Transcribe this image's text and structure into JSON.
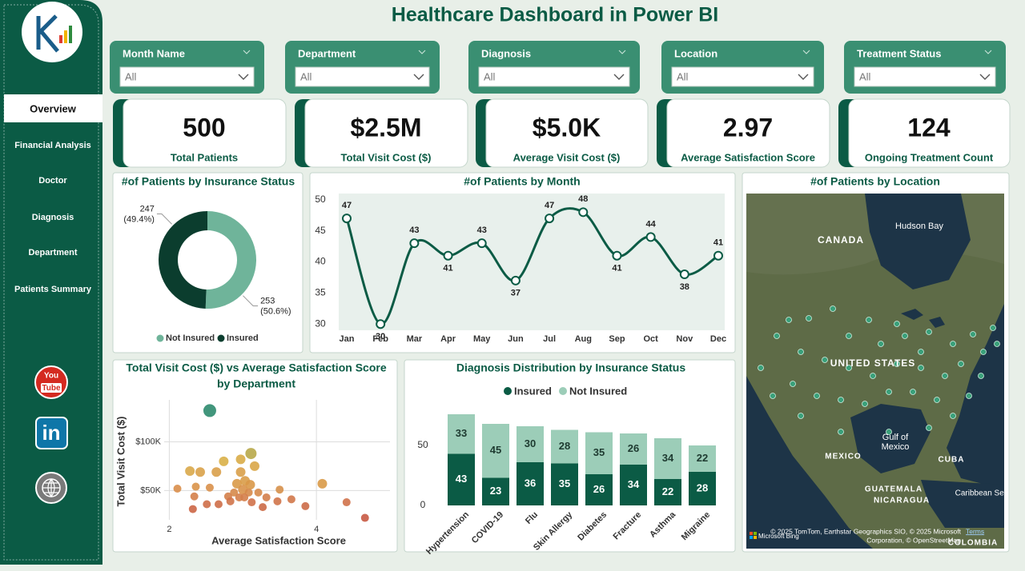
{
  "title": "Healthcare Dashboard in Power BI",
  "nav": {
    "items": [
      "Overview",
      "Financial Analysis",
      "Doctor",
      "Diagnosis",
      "Department",
      "Patients Summary"
    ],
    "active": 0
  },
  "social": {
    "youtube": [
      "You",
      "Tube"
    ],
    "linkedin": "in"
  },
  "filters": [
    {
      "label": "Month Name",
      "value": "All"
    },
    {
      "label": "Department",
      "value": "All"
    },
    {
      "label": "Diagnosis",
      "value": "All"
    },
    {
      "label": "Location",
      "value": "All"
    },
    {
      "label": "Treatment Status",
      "value": "All"
    }
  ],
  "kpis": [
    {
      "value": "500",
      "label": "Total Patients"
    },
    {
      "value": "$2.5M",
      "label": "Total Visit Cost ($)"
    },
    {
      "value": "$5.0K",
      "label": "Average Visit Cost ($)"
    },
    {
      "value": "2.97",
      "label": "Average Satisfaction Score"
    },
    {
      "value": "124",
      "label": "Ongoing Treatment Count"
    }
  ],
  "insurance_chart": {
    "type": "donut",
    "title": "#of Patients by Insurance Status",
    "categories": [
      "Not Insured",
      "Insured"
    ],
    "values": [
      253,
      247
    ],
    "value_labels": [
      "253 (50.6%)",
      "247 (49.4%)"
    ],
    "colors": [
      "#6fb49a",
      "#0b3d2e"
    ]
  },
  "month_chart": {
    "type": "line",
    "title": "#of Patients by Month",
    "categories": [
      "Jan",
      "Feb",
      "Mar",
      "Apr",
      "May",
      "Jun",
      "Jul",
      "Aug",
      "Sep",
      "Oct",
      "Nov",
      "Dec"
    ],
    "values": [
      47,
      30,
      43,
      41,
      43,
      37,
      47,
      48,
      41,
      44,
      38,
      41
    ],
    "color": "#0b5b45",
    "ylim": [
      29,
      51
    ],
    "yticks": [
      30,
      35,
      40,
      45,
      50
    ]
  },
  "cost_chart": {
    "type": "scatter",
    "title": [
      "Total Visit Cost ($) vs Average Satisfaction Score",
      "by Department"
    ],
    "x_label": "Average Satisfaction Score",
    "y_label": "Total Visit Cost ($)",
    "xlim": [
      1.93,
      5.0
    ],
    "ylim": [
      20000,
      143000
    ],
    "xticks": [
      2,
      4
    ],
    "yticks": [
      {
        "value": 50000,
        "label": "$50K"
      },
      {
        "value": 100000,
        "label": "$100K"
      }
    ],
    "grid": true,
    "x": [
      2.55,
      3.11,
      2.74,
      2.28,
      2.42,
      2.97,
      3.16,
      2.64,
      2.97,
      2.36,
      2.55,
      2.11,
      2.92,
      3.03,
      3.1,
      3.0,
      2.88,
      3.08,
      3.21,
      4.08,
      3.5,
      2.34,
      2.8,
      2.95,
      3.02,
      3.32,
      3.47,
      3.66,
      4.41,
      2.32,
      2.51,
      2.67,
      3.12,
      3.27,
      3.85,
      4.66,
      2.83
    ],
    "y": [
      132000,
      88000,
      80000,
      70000,
      69000,
      82000,
      75000,
      69000,
      69000,
      54000,
      53000,
      52000,
      57000,
      60000,
      56000,
      51000,
      48000,
      48000,
      48000,
      57000,
      51000,
      44000,
      44000,
      43000,
      43000,
      43000,
      39000,
      41000,
      38000,
      31000,
      36000,
      36000,
      38000,
      33000,
      34000,
      22000,
      39000
    ],
    "sizes": [
      8,
      7,
      6,
      6,
      6,
      6,
      6,
      6,
      6,
      5,
      5,
      5,
      6,
      6,
      6,
      6,
      5,
      5,
      5,
      6,
      5,
      5,
      5,
      5,
      5,
      5,
      5,
      5,
      5,
      5,
      5,
      5,
      5,
      5,
      5,
      5,
      5
    ],
    "colors": [
      "#2e8b6e",
      "#b8a84a",
      "#d9b048",
      "#d9a84a",
      "#d9a24a",
      "#d9ac48",
      "#d9a648",
      "#d9a04a",
      "#d9a04a",
      "#d9944a",
      "#d9904a",
      "#d98e4a",
      "#d99a48",
      "#d99c48",
      "#d99848",
      "#d9924a",
      "#d68a4a",
      "#d68a4a",
      "#d68a4a",
      "#d99a48",
      "#d6904a",
      "#d4804a",
      "#d4804a",
      "#d47e4a",
      "#d47e4a",
      "#d47e4a",
      "#d0744a",
      "#d2784a",
      "#d0724a",
      "#cc6646",
      "#ce6e48",
      "#ce6e48",
      "#d0724a",
      "#cc6a46",
      "#cc6c48",
      "#c85a44",
      "#d0744a"
    ]
  },
  "diagnosis_chart": {
    "type": "bar",
    "stacked": true,
    "title": "Diagnosis Distribution by Insurance Status",
    "categories": [
      "Hypertension",
      "COVID-19",
      "Flu",
      "Skin Allergy",
      "Diabetes",
      "Fracture",
      "Asthma",
      "Migraine"
    ],
    "series": [
      {
        "name": "Insured",
        "color": "#0b5b45",
        "values": [
          43,
          23,
          36,
          35,
          26,
          34,
          22,
          28
        ]
      },
      {
        "name": "Not Insured",
        "color": "#9ccdb8",
        "values": [
          33,
          45,
          30,
          28,
          35,
          26,
          34,
          22
        ]
      }
    ],
    "ylim": [
      0,
      80
    ],
    "yticks": [
      0,
      50
    ]
  },
  "map": {
    "title": "#of Patients by Location",
    "labels": [
      "CANADA",
      "Hudson Bay",
      "UNITED STATES",
      "Gulf of",
      "Mexico",
      "MEXICO",
      "CUBA",
      "GUATEMALA",
      "NICARAGUA",
      "Caribbean Sea",
      "COLOMBIA"
    ],
    "attribution": [
      "© 2025 TomTom, Earthstar Geographics SIO, © 2025 Microsoft",
      "Corporation, © OpenStreetMap"
    ],
    "terms": "Terms",
    "brand": "Microsoft Bing"
  }
}
